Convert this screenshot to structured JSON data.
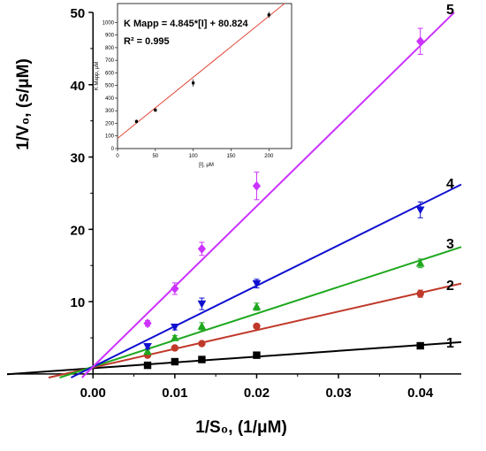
{
  "chart_data": [
    {
      "type": "scatter",
      "title": "",
      "xlabel": "1/S₀, (1/μM)",
      "ylabel": "1/V₀, (s/μM)",
      "xlim": [
        -0.0105,
        0.045
      ],
      "ylim": [
        -0.5,
        50
      ],
      "x_ticks": [
        0.0,
        0.01,
        0.02,
        0.03,
        0.04
      ],
      "x_tick_labels": [
        "0.00",
        "0.01",
        "0.02",
        "0.03",
        "0.04"
      ],
      "y_ticks": [
        10,
        20,
        30,
        40,
        50
      ],
      "y_tick_labels": [
        "10",
        "20",
        "30",
        "40",
        "50"
      ],
      "grid": false,
      "series": [
        {
          "name": "1",
          "color": "#000000",
          "marker": "square",
          "x": [
            0.00667,
            0.01,
            0.0133,
            0.02,
            0.04
          ],
          "y": [
            1.2,
            1.7,
            2.0,
            2.6,
            3.9
          ],
          "error": [
            0.1,
            0.1,
            0.1,
            0.1,
            0.15
          ],
          "fit": {
            "slope": 80,
            "intercept": 0.8
          }
        },
        {
          "name": "2",
          "color": "#c0392b",
          "marker": "circle",
          "x": [
            0.00667,
            0.01,
            0.0133,
            0.02,
            0.04
          ],
          "y": [
            2.6,
            3.6,
            4.2,
            6.6,
            11.1
          ],
          "error": [
            0.2,
            0.2,
            0.2,
            0.3,
            0.5
          ],
          "fit": {
            "slope": 258,
            "intercept": 0.9
          }
        },
        {
          "name": "3",
          "color": "#1fa81f",
          "marker": "triangle",
          "x": [
            0.00667,
            0.01,
            0.0133,
            0.02,
            0.04
          ],
          "y": [
            3.1,
            5.0,
            6.6,
            9.3,
            15.3
          ],
          "error": [
            0.3,
            0.3,
            0.5,
            0.5,
            0.6
          ],
          "fit": {
            "slope": 368,
            "intercept": 1.0
          }
        },
        {
          "name": "4",
          "color": "#1010d0",
          "marker": "triangle-down",
          "x": [
            0.00667,
            0.01,
            0.0133,
            0.02,
            0.04
          ],
          "y": [
            3.8,
            6.5,
            9.7,
            12.5,
            22.7
          ],
          "error": [
            0.3,
            0.4,
            0.8,
            0.6,
            1.1
          ],
          "fit": {
            "slope": 560,
            "intercept": 1.0
          }
        },
        {
          "name": "5",
          "color": "#cc33ff",
          "marker": "diamond",
          "x": [
            0.00667,
            0.01,
            0.0133,
            0.02,
            0.04
          ],
          "y": [
            7.0,
            11.8,
            17.3,
            26.0,
            46.0
          ],
          "error": [
            0.4,
            0.8,
            0.9,
            1.9,
            1.8
          ],
          "fit": {
            "slope": 1110,
            "intercept": 1.0
          }
        }
      ]
    },
    {
      "type": "scatter",
      "title": "",
      "xlabel": "[I], μM",
      "ylabel": "K Mapp, μM",
      "xlim": [
        0,
        230
      ],
      "ylim": [
        0,
        1150
      ],
      "x_ticks": [
        0,
        50,
        100,
        150,
        200
      ],
      "y_ticks": [
        0,
        100,
        200,
        300,
        400,
        500,
        600,
        700,
        800,
        900,
        1000
      ],
      "annotations": [
        "K Mapp = 4.845*[I] + 80.824",
        "R² = 0.995"
      ],
      "series": [
        {
          "color": "#000000",
          "marker": "square",
          "x": [
            25,
            50,
            100,
            200
          ],
          "y": [
            215,
            305,
            520,
            1060
          ],
          "error": [
            15,
            15,
            30,
            25
          ],
          "fit": {
            "slope": 4.845,
            "intercept": 80.824,
            "color": "#e0493a"
          }
        }
      ]
    }
  ]
}
